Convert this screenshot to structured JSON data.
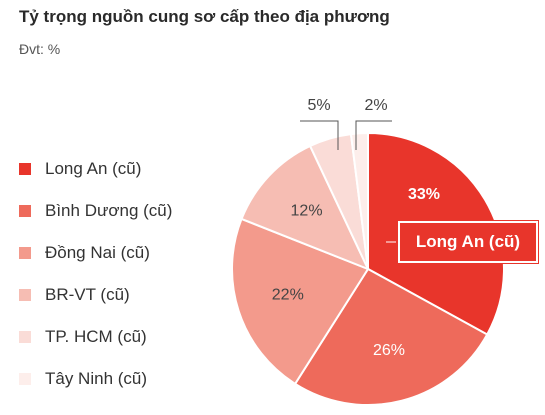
{
  "title": "Tỷ trọng nguồn cung sơ cấp theo địa phương",
  "subtitle": "Đvt: %",
  "callout": "Long An (cũ)",
  "chart_data": {
    "type": "pie",
    "title": "Tỷ trọng nguồn cung sơ cấp theo địa phương",
    "unit": "%",
    "legend_position": "left",
    "slices": [
      {
        "name": "Long An (cũ)",
        "value": 33,
        "label": "33%",
        "color": "#e8352b"
      },
      {
        "name": "Bình Dương (cũ)",
        "value": 26,
        "label": "26%",
        "color": "#ee6a5b"
      },
      {
        "name": "Đồng Nai (cũ)",
        "value": 22,
        "label": "22%",
        "color": "#f39a8c"
      },
      {
        "name": "BR-VT (cũ)",
        "value": 12,
        "label": "12%",
        "color": "#f6bdb3"
      },
      {
        "name": "TP. HCM (cũ)",
        "value": 5,
        "label": "5%",
        "color": "#fadcd7"
      },
      {
        "name": "Tây Ninh (cũ)",
        "value": 2,
        "label": "2%",
        "color": "#fdeeeb"
      }
    ]
  }
}
